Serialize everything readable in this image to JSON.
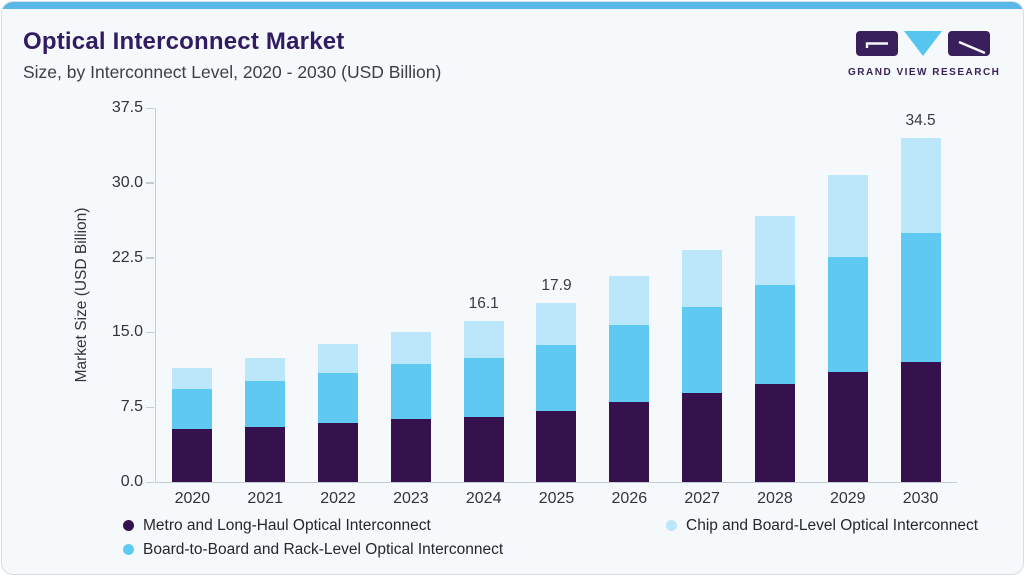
{
  "header": {
    "title": "Optical Interconnect Market",
    "subtitle": "Size, by Interconnect Level, 2020 - 2030 (USD Billion)",
    "title_color": "#311B63",
    "subtitle_color": "#3E3E46"
  },
  "card": {
    "top_strip_color": "#5BB7E5",
    "background_color": "#F5F9FC"
  },
  "logo": {
    "text": "GRAND VIEW RESEARCH",
    "block_color": "#3A1F5D",
    "triangle_color": "#56C5F0",
    "text_color": "#3A2259"
  },
  "chart_data": {
    "type": "bar",
    "stacked": true,
    "title": "Optical Interconnect Market Size, by Interconnect Level, 2020 - 2030 (USD Billion)",
    "xlabel": "",
    "ylabel": "Market Size (USD Billion)",
    "ylim": [
      0,
      37.5
    ],
    "yticks": [
      0,
      7.5,
      15,
      22.5,
      30,
      37.5
    ],
    "ytick_labels": [
      "0.0",
      "7.5",
      "15.0",
      "22.5",
      "30.0",
      "37.5"
    ],
    "grid": false,
    "legend_position": "bottom",
    "categories": [
      "2020",
      "2021",
      "2022",
      "2023",
      "2024",
      "2025",
      "2026",
      "2027",
      "2028",
      "2029",
      "2030"
    ],
    "series": [
      {
        "name": "Metro and Long-Haul Optical Interconnect",
        "color": "#35124D",
        "values": [
          5.3,
          5.5,
          5.9,
          6.3,
          6.5,
          7.1,
          8.0,
          8.9,
          9.8,
          11.0,
          12.0
        ]
      },
      {
        "name": "Board-to-Board and Rack-Level Optical Interconnect",
        "color": "#5FC9F2",
        "values": [
          4.0,
          4.6,
          5.0,
          5.5,
          5.9,
          6.6,
          7.7,
          8.6,
          10.0,
          11.6,
          13.0
        ]
      },
      {
        "name": "Chip and Board-Level Optical Interconnect",
        "color": "#BCE7FA",
        "values": [
          2.1,
          2.3,
          2.9,
          3.2,
          3.7,
          4.2,
          5.0,
          5.8,
          6.9,
          8.2,
          9.5
        ]
      }
    ],
    "total_labels": {
      "2024": "16.1",
      "2025": "17.9",
      "2030": "34.5"
    }
  },
  "legend": {
    "items": [
      {
        "label": "Metro and Long-Haul Optical Interconnect",
        "color": "#35124D"
      },
      {
        "label": "Chip and Board-Level Optical Interconnect",
        "color": "#BCE7FA"
      },
      {
        "label": "Board-to-Board and Rack-Level Optical Interconnect",
        "color": "#5FC9F2"
      }
    ]
  }
}
